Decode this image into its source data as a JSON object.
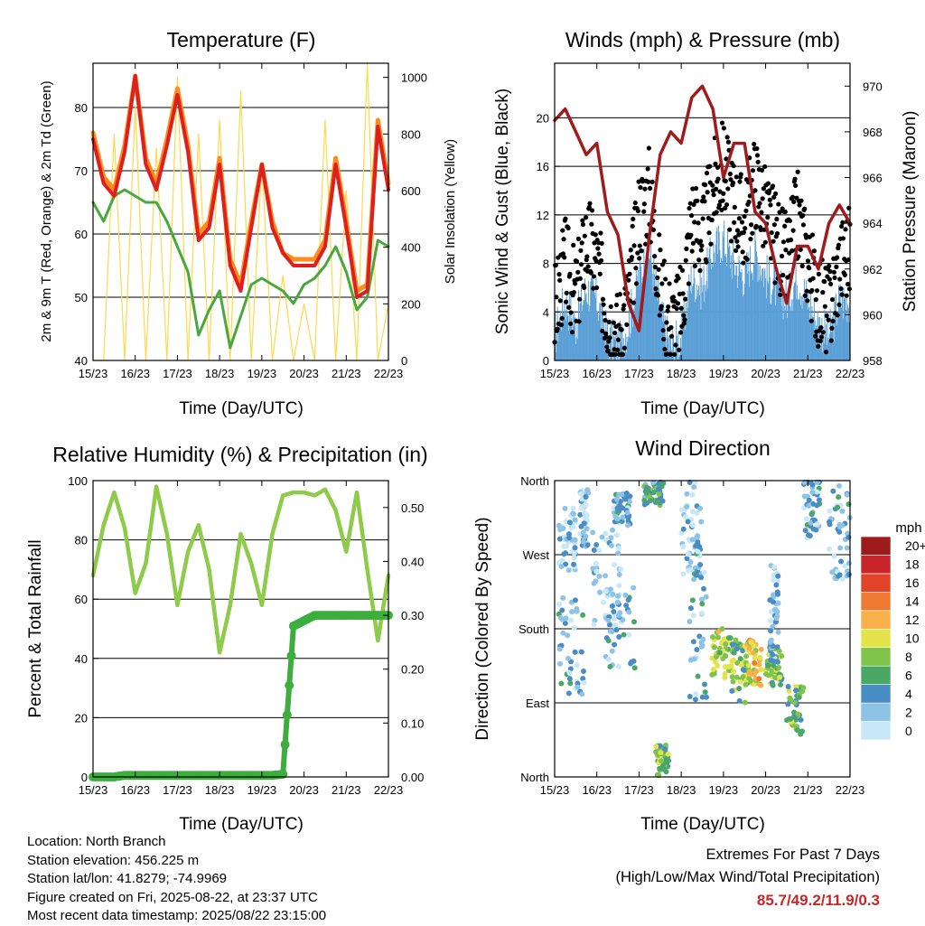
{
  "x_tick_labels": [
    "15/23",
    "16/23",
    "17/23",
    "18/23",
    "19/23",
    "20/23",
    "21/23",
    "22/23"
  ],
  "footer": {
    "location": "Location: North Branch",
    "elevation": "Station elevation: 456.225 m",
    "latlon": "Station lat/lon: 41.8279; -74.9969",
    "created": "Figure created on Fri, 2025-08-22, at 23:37 UTC",
    "timestamp": "Most recent data timestamp: 2025/08/22 23:15:00",
    "extremes_title": "Extremes For Past 7 Days",
    "extremes_sub": "(High/Low/Max Wind/Total Precipitation)",
    "extremes_values": "85.7/49.2/11.9/0.3"
  },
  "chart_data": [
    {
      "type": "line",
      "title": "Temperature (F)",
      "xlabel": "Time (Day/UTC)",
      "ylabel": "2m & 9m T (Red, Orange) & 2m Td (Green)",
      "ylabel_right": "Solar Insolation (Yellow)",
      "ylim": [
        40,
        87
      ],
      "ylim_right": [
        0,
        1050
      ],
      "yticks": [
        40,
        50,
        60,
        70,
        80
      ],
      "yticks_right": [
        0,
        200,
        400,
        600,
        800,
        1000
      ],
      "x": [
        0,
        0.25,
        0.5,
        0.75,
        1,
        1.25,
        1.5,
        1.75,
        2,
        2.25,
        2.5,
        2.75,
        3,
        3.25,
        3.5,
        3.75,
        4,
        4.25,
        4.5,
        4.75,
        5,
        5.25,
        5.5,
        5.75,
        6,
        6.25,
        6.5,
        6.75,
        7
      ],
      "series": [
        {
          "color": "#ff8c1a",
          "values": [
            76,
            69,
            67,
            74,
            85,
            72,
            68,
            75,
            83,
            74,
            60,
            62,
            72,
            56,
            52,
            62,
            71,
            62,
            57,
            56,
            56,
            56,
            59,
            72,
            62,
            51,
            52,
            78,
            68
          ]
        },
        {
          "color": "#dd1f1f",
          "values": [
            75,
            68,
            66,
            73,
            85,
            71,
            67,
            74,
            82,
            73,
            59,
            61,
            71,
            55,
            51,
            61,
            71,
            61,
            57,
            55,
            55,
            55,
            58,
            71,
            61,
            50,
            51,
            77,
            67
          ]
        },
        {
          "color": "#49a83d",
          "values": [
            65,
            62,
            66,
            67,
            66,
            65,
            65,
            62,
            58,
            54,
            44,
            48,
            51,
            42,
            47,
            52,
            53,
            52,
            51,
            49,
            52,
            53,
            55,
            58,
            54,
            48,
            50,
            59,
            58
          ]
        },
        {
          "color": "#ffd84d",
          "axis": "right",
          "values": [
            0,
            0,
            800,
            0,
            900,
            0,
            750,
            0,
            1000,
            0,
            800,
            0,
            850,
            0,
            950,
            0,
            700,
            0,
            300,
            0,
            200,
            0,
            850,
            0,
            600,
            0,
            1050,
            0,
            200
          ]
        }
      ]
    },
    {
      "type": "scatter",
      "title": "Winds (mph) & Pressure (mb)",
      "xlabel": "Time (Day/UTC)",
      "ylabel": "Sonic Wind & Gust (Blue, Black)",
      "ylabel_right": "Station Pressure (Maroon)",
      "ylim": [
        0,
        24.5
      ],
      "ylim_right": [
        958,
        971
      ],
      "yticks": [
        0,
        4,
        8,
        12,
        16,
        20
      ],
      "yticks_right": [
        958,
        960,
        962,
        964,
        966,
        968,
        970
      ],
      "x": [
        0,
        0.25,
        0.5,
        0.75,
        1,
        1.25,
        1.5,
        1.75,
        2,
        2.25,
        2.5,
        2.75,
        3,
        3.25,
        3.5,
        3.75,
        4,
        4.25,
        4.5,
        4.75,
        5,
        5.25,
        5.5,
        5.75,
        6,
        6.25,
        6.5,
        6.75,
        7
      ],
      "series": [
        {
          "color": "#000000",
          "values": [
            4,
            8,
            5,
            10,
            8,
            4,
            2,
            5,
            12,
            14,
            6,
            3,
            4,
            12,
            10,
            14,
            16,
            13,
            11,
            15,
            12,
            10,
            8,
            12,
            8,
            5,
            4,
            8,
            9
          ]
        },
        {
          "color": "#5a9fd6",
          "values": [
            2,
            5,
            3,
            6,
            5,
            2,
            1,
            3,
            7,
            9,
            4,
            1,
            2,
            7,
            6,
            9,
            10,
            8,
            7,
            9,
            7,
            6,
            5,
            7,
            5,
            3,
            2,
            5,
            5
          ]
        },
        {
          "color": "#a01c1c",
          "axis": "right",
          "values": [
            968.5,
            969,
            968,
            967,
            967.5,
            964.5,
            963.5,
            960.5,
            959.3,
            963.5,
            967,
            968,
            967.5,
            969.5,
            970,
            969,
            966,
            967.5,
            967.5,
            964.5,
            964,
            962,
            960.5,
            963,
            963,
            962,
            964,
            964.8,
            964
          ]
        }
      ]
    },
    {
      "type": "line",
      "title": "Relative Humidity (%) & Precipitation (in)",
      "xlabel": "Time (Day/UTC)",
      "ylabel": "Percent & Total Rainfall",
      "ylim": [
        0,
        100
      ],
      "ylim_right": [
        0,
        0.55
      ],
      "yticks": [
        0,
        20,
        40,
        60,
        80,
        100
      ],
      "yticks_right": [
        "0.00",
        "0.10",
        "0.20",
        "0.30",
        "0.40",
        "0.50"
      ],
      "x": [
        0,
        0.25,
        0.5,
        0.75,
        1,
        1.25,
        1.5,
        1.75,
        2,
        2.25,
        2.5,
        2.75,
        3,
        3.25,
        3.5,
        3.75,
        4,
        4.25,
        4.5,
        4.75,
        5,
        5.25,
        5.5,
        5.75,
        6,
        6.25,
        6.5,
        6.75,
        7
      ],
      "series": [
        {
          "color": "#8ecb4a",
          "values": [
            68,
            85,
            96,
            84,
            62,
            72,
            98,
            82,
            58,
            76,
            85,
            70,
            42,
            58,
            82,
            72,
            58,
            82,
            95,
            96,
            96,
            95,
            97,
            90,
            76,
            96,
            70,
            46,
            68
          ]
        },
        {
          "color": "#3dae3d",
          "axis": "right",
          "values": [
            0,
            0,
            0,
            0.003,
            0.003,
            0.003,
            0.003,
            0.003,
            0.003,
            0.003,
            0.003,
            0.003,
            0.003,
            0.003,
            0.003,
            0.003,
            0.003,
            0.003,
            0.005,
            0.28,
            0.29,
            0.3,
            0.3,
            0.3,
            0.3,
            0.3,
            0.3,
            0.3,
            0.3
          ]
        }
      ]
    },
    {
      "type": "scatter",
      "title": "Wind Direction",
      "xlabel": "Time (Day/UTC)",
      "ylabel": "Direction (Colored By Speed)",
      "ytick_labels": [
        "North",
        "East",
        "South",
        "West",
        "North"
      ],
      "ylim": [
        0,
        360
      ],
      "colorbar_title": "mph",
      "colorbar_labels": [
        "0",
        "2",
        "4",
        "6",
        "8",
        "10",
        "12",
        "14",
        "16",
        "18",
        "20+"
      ],
      "colorbar_colors": [
        "#c7e9f7",
        "#8ec3e8",
        "#4a8cc4",
        "#49a866",
        "#80c44c",
        "#e3e34c",
        "#f7b04a",
        "#f07a32",
        "#e0452a",
        "#c8242a",
        "#9e1b1b"
      ]
    }
  ]
}
